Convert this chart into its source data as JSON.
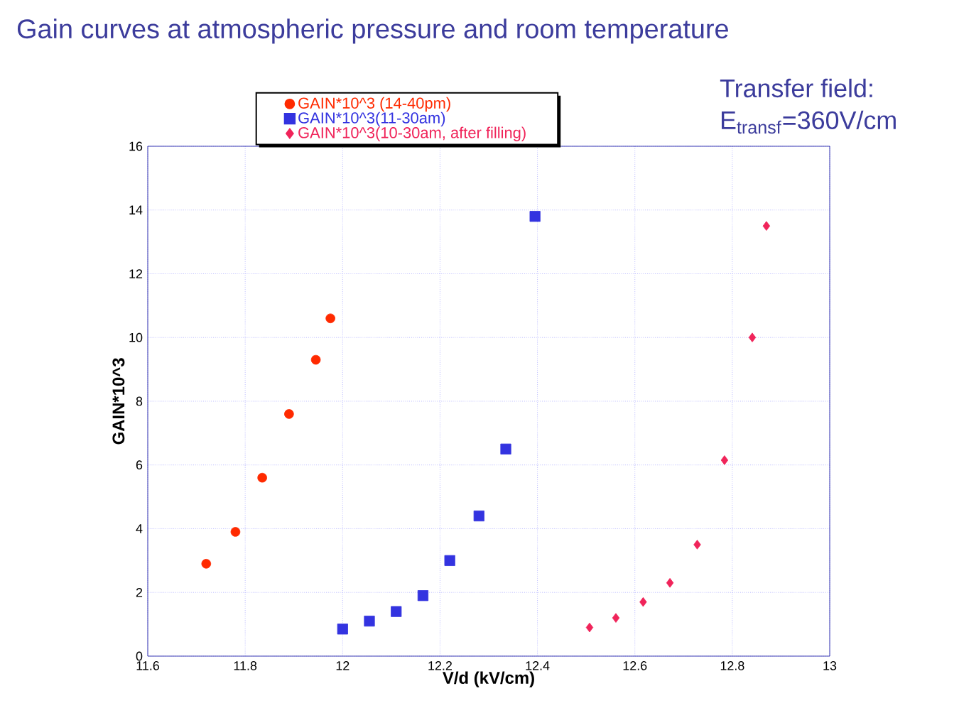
{
  "chart_data": {
    "type": "scatter",
    "title": "Gain curves at atmospheric pressure and room temperature",
    "xlabel": "V/d (kV/cm)",
    "ylabel": "GAIN*10^3",
    "annotations": [
      "Transfer field:",
      "E$_{transf}$=360V/cm"
    ],
    "xlim": [
      11.6,
      13
    ],
    "xticks": [
      11.6,
      11.8,
      12,
      12.2,
      12.4,
      12.6,
      12.8,
      13
    ],
    "ylim": [
      0,
      16
    ],
    "yticks": [
      0,
      2,
      4,
      6,
      8,
      10,
      12,
      14,
      16
    ],
    "grid": true,
    "legend": "top",
    "series": [
      {
        "name": "GAIN*10^3 (14-40pm)",
        "color": "#ff2a00",
        "marker": "circle",
        "x": [
          11.72,
          11.78,
          11.835,
          11.89,
          11.945,
          11.975
        ],
        "values": [
          2.9,
          3.9,
          5.6,
          7.6,
          9.3,
          10.6
        ]
      },
      {
        "name": "GAIN*10^3(11-30am)",
        "color": "#3333e0",
        "marker": "square",
        "x": [
          12.0,
          12.055,
          12.11,
          12.165,
          12.22,
          12.28,
          12.335,
          12.395
        ],
        "values": [
          0.85,
          1.1,
          1.4,
          1.9,
          3.0,
          4.4,
          6.5,
          13.8
        ]
      },
      {
        "name": "GAIN*10^3(10-30am, after filling)",
        "color": "#f0245a",
        "marker": "diamond",
        "x": [
          12.507,
          12.561,
          12.617,
          12.672,
          12.728,
          12.784,
          12.841,
          12.87
        ],
        "values": [
          0.9,
          1.2,
          1.7,
          2.3,
          3.5,
          6.15,
          10.0,
          13.5
        ]
      }
    ]
  }
}
